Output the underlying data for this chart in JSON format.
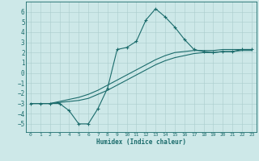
{
  "xlabel": "Humidex (Indice chaleur)",
  "bg_color": "#cde8e8",
  "line_color": "#1a6b6b",
  "grid_color": "#aacccc",
  "xlim": [
    -0.5,
    23.5
  ],
  "ylim": [
    -5.8,
    7.0
  ],
  "xticks": [
    0,
    1,
    2,
    3,
    4,
    5,
    6,
    7,
    8,
    9,
    10,
    11,
    12,
    13,
    14,
    15,
    16,
    17,
    18,
    19,
    20,
    21,
    22,
    23
  ],
  "yticks": [
    -5,
    -4,
    -3,
    -2,
    -1,
    0,
    1,
    2,
    3,
    4,
    5,
    6
  ],
  "line1_x": [
    0,
    1,
    2,
    3,
    4,
    5,
    6,
    7,
    8,
    9,
    10,
    11,
    12,
    13,
    14,
    15,
    16,
    17,
    18,
    19,
    20,
    21,
    22,
    23
  ],
  "line1_y": [
    -3.0,
    -3.0,
    -3.0,
    -3.0,
    -3.7,
    -5.0,
    -5.0,
    -3.5,
    -1.5,
    2.3,
    2.5,
    3.1,
    5.2,
    6.3,
    5.5,
    4.5,
    3.3,
    2.3,
    2.1,
    2.0,
    2.1,
    2.1,
    2.3,
    2.3
  ],
  "line2_x": [
    0,
    1,
    2,
    3,
    4,
    5,
    6,
    7,
    8,
    9,
    10,
    11,
    12,
    13,
    14,
    15,
    16,
    17,
    18,
    19,
    20,
    21,
    22,
    23
  ],
  "line2_y": [
    -3.0,
    -3.0,
    -3.0,
    -2.9,
    -2.8,
    -2.7,
    -2.5,
    -2.1,
    -1.7,
    -1.2,
    -0.7,
    -0.2,
    0.3,
    0.8,
    1.2,
    1.5,
    1.7,
    1.9,
    2.0,
    2.0,
    2.1,
    2.1,
    2.2,
    2.2
  ],
  "line3_x": [
    0,
    1,
    2,
    3,
    4,
    5,
    6,
    7,
    8,
    9,
    10,
    11,
    12,
    13,
    14,
    15,
    16,
    17,
    18,
    19,
    20,
    21,
    22,
    23
  ],
  "line3_y": [
    -3.0,
    -3.0,
    -3.0,
    -2.8,
    -2.6,
    -2.4,
    -2.1,
    -1.7,
    -1.2,
    -0.7,
    -0.2,
    0.3,
    0.8,
    1.3,
    1.7,
    2.0,
    2.1,
    2.2,
    2.2,
    2.2,
    2.3,
    2.3,
    2.3,
    2.3
  ]
}
